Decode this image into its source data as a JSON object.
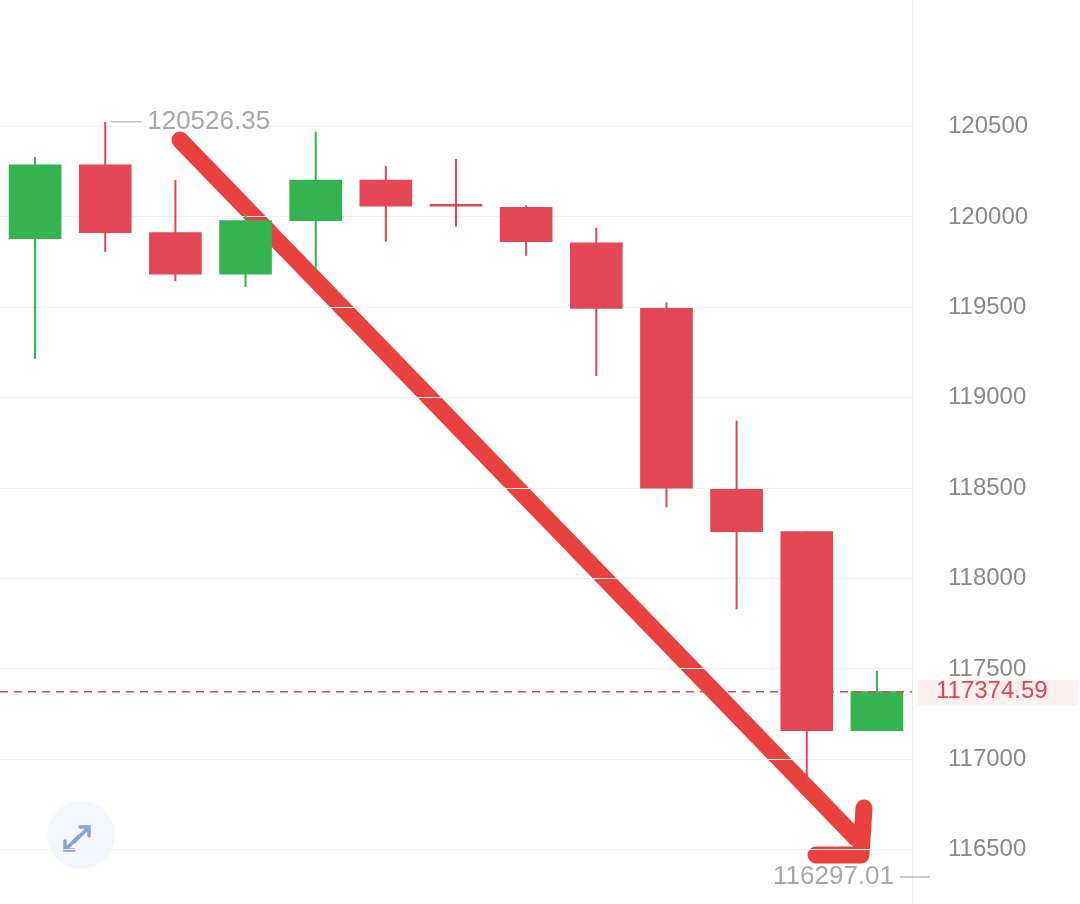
{
  "chart_data": {
    "type": "candlestick",
    "categories": [
      null,
      null,
      null,
      null,
      null,
      null,
      null,
      null,
      null,
      null,
      null,
      null,
      null
    ],
    "ohlc": [
      [
        119880,
        120332,
        119215,
        120288
      ],
      [
        120288,
        120526.35,
        119807,
        119913
      ],
      [
        119913,
        120204,
        119645,
        119684
      ],
      [
        119684,
        120020,
        119612,
        119980
      ],
      [
        119980,
        120472,
        119701,
        120204
      ],
      [
        120204,
        120282,
        119863,
        120059
      ],
      [
        120059,
        120321,
        119947,
        120059
      ],
      [
        120053,
        120064,
        119785,
        119863
      ],
      [
        119857,
        119941,
        119120,
        119494
      ],
      [
        119494,
        119528,
        118394,
        118500
      ],
      [
        118494,
        118874,
        117830,
        118260
      ],
      [
        118260,
        118260,
        116863,
        117159
      ],
      [
        117159,
        117489,
        117159,
        117374.59
      ]
    ],
    "colors": [
      "#34b350",
      "#e34655",
      "#e34655",
      "#34b350",
      "#34b350",
      "#e34655",
      "#e34655",
      "#e34655",
      "#e34655",
      "#e34655",
      "#e34655",
      "#e34655",
      "#34b350"
    ],
    "ylim": [
      116200,
      121200
    ],
    "yticks": [
      116500,
      117000,
      117500,
      118000,
      118500,
      119000,
      119500,
      120000,
      120500
    ],
    "grid": "y",
    "tick_labels": "y",
    "legend": false,
    "ref_lines": [
      {
        "axis": "y",
        "value": 117374.59,
        "label": "117374.59",
        "color": "#e34655",
        "line_style": "dashed"
      }
    ],
    "annotations": [
      "120526.35",
      "116297.01"
    ]
  }
}
